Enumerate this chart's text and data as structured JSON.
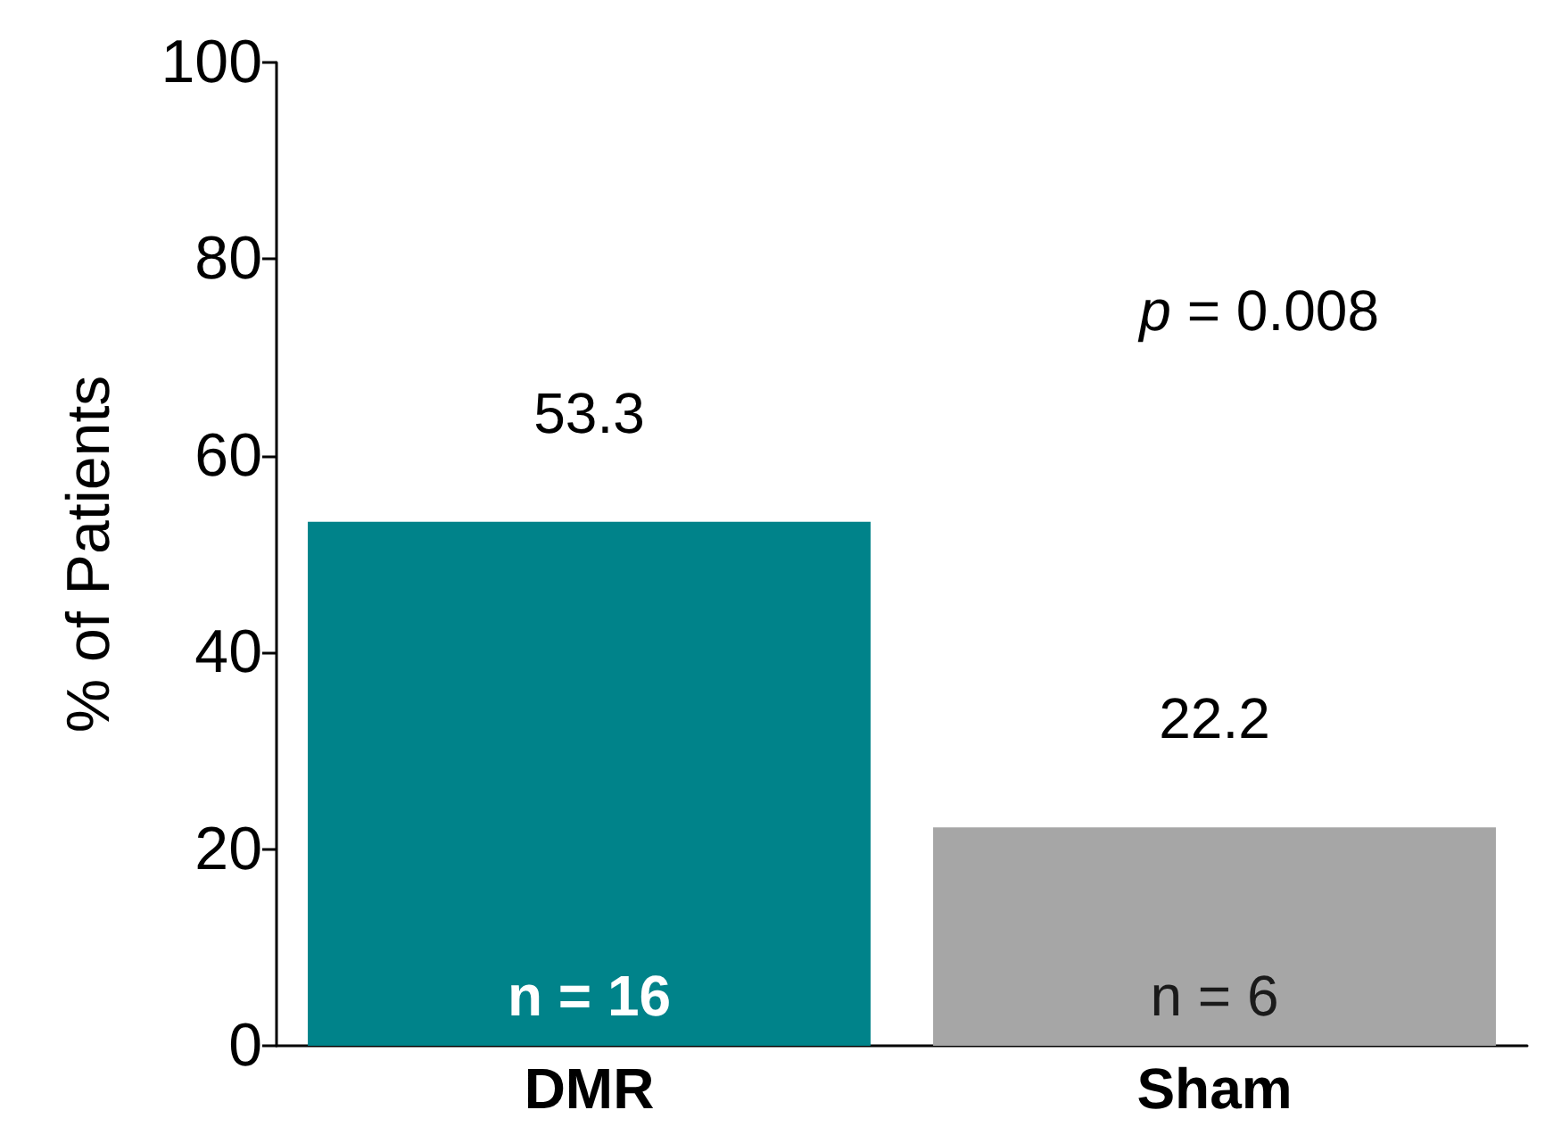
{
  "chart_data": {
    "type": "bar",
    "ylabel": "% of Patients",
    "categories": [
      "DMR",
      "Sham"
    ],
    "values": [
      53.3,
      22.2
    ],
    "colors": [
      "#00838a",
      "#a6a6a6"
    ],
    "ylim": [
      0,
      100
    ],
    "yticks": [
      0,
      20,
      40,
      60,
      80,
      100
    ],
    "grid": false,
    "data_labels": true,
    "annotations": [
      "p = 0.008",
      "n = 16",
      "n = 6"
    ]
  }
}
